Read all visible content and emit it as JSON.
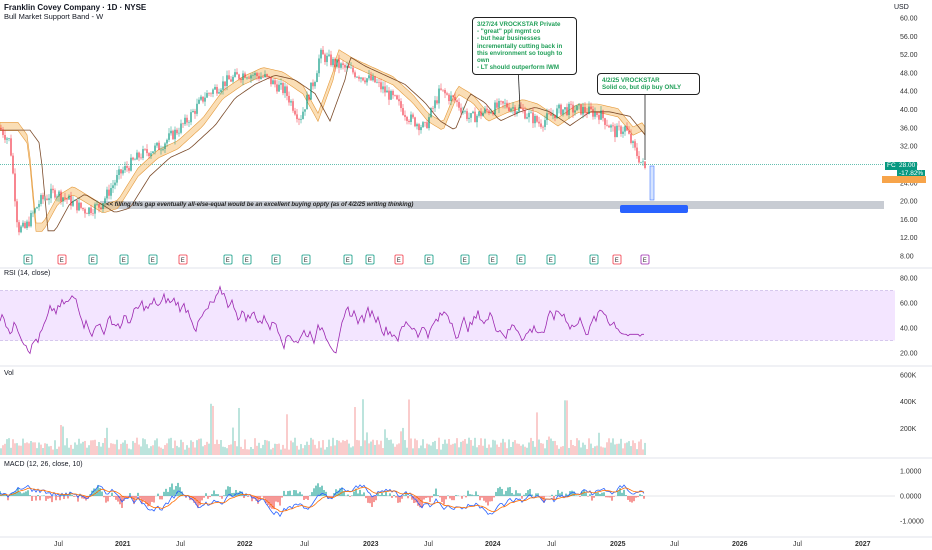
{
  "header": {
    "title": "Franklin Covey Company · 1D · NYSE",
    "indicator": "Bull Market Support Band - W",
    "currency": "USD"
  },
  "price_axis": [
    "60.00",
    "56.00",
    "52.00",
    "48.00",
    "44.00",
    "40.00",
    "36.00",
    "32.00",
    "28.00",
    "24.00",
    "20.00",
    "16.00",
    "12.00",
    "8.00"
  ],
  "last_price": {
    "ticker": "FC",
    "price": "28.00",
    "change": "-17.82%",
    "color": "#089981"
  },
  "band_price": {
    "color": "#f7a44a"
  },
  "annotations": {
    "note1": "3/27/24 VROCKSTAR Private\n- \"great\" ppl mgmt co\n- but hear businesses\nincrementally cutting back in\nthis environment so tough to\nown\n- LT should outperform IWM",
    "note2": "4/2/25 VROCKSTAR\nSolid co, but dip buy ONLY",
    "gap_note": "<< filling this gap eventually all-else-equal would be an excellent buying oppty (as of 4/2/25 writing thinking)",
    "target_label": ""
  },
  "earnings_markers": [
    "E",
    "E",
    "E",
    "E",
    "E",
    "E",
    "E",
    "E",
    "E",
    "E",
    "E",
    "E",
    "E",
    "E",
    "E",
    "E",
    "E",
    "E",
    "E",
    "E",
    "E",
    "E"
  ],
  "rsi": {
    "label": "RSI (14, close)",
    "axis": [
      "80.00",
      "60.00",
      "40.00",
      "20.00"
    ]
  },
  "volume": {
    "label": "Vol",
    "axis": [
      "600K",
      "400K",
      "200K"
    ]
  },
  "macd": {
    "label": "MACD (12, 26, close, 10)",
    "axis": [
      "1.0000",
      "0.0000",
      "-1.0000"
    ]
  },
  "time_axis": [
    "Jul",
    "2021",
    "Jul",
    "2022",
    "Jul",
    "2023",
    "Jul",
    "2024",
    "Jul",
    "2025",
    "Jul",
    "2026",
    "Jul",
    "2027"
  ],
  "colors": {
    "up": "#089981",
    "down": "#f23645",
    "band_fill": "#f5c27a",
    "sma": "#7b4b2a",
    "rsi": "#9c27b0",
    "rsi_fill": "#f3e5ff",
    "macd": "#2962ff",
    "signal": "#ff6d00",
    "gap_band": "#c8ccd3",
    "target": "#2962ff"
  }
}
